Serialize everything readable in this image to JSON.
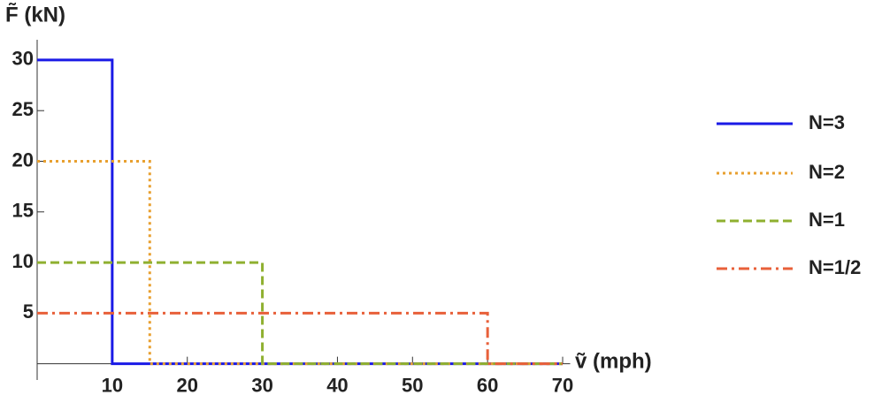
{
  "chart_data": {
    "type": "line",
    "y_label": "F̃ (kN)",
    "x_label": "ṽ (mph)",
    "xlim": [
      0,
      71
    ],
    "ylim": [
      -1.6,
      32
    ],
    "xticks": [
      10,
      20,
      30,
      40,
      50,
      60,
      70
    ],
    "yticks": [
      5,
      10,
      15,
      20,
      25,
      30
    ],
    "series": [
      {
        "name": "N=3",
        "color": "#1a1ae6",
        "dash": "solid",
        "x": [
          0,
          10,
          10,
          70
        ],
        "values": [
          30,
          30,
          0,
          0
        ]
      },
      {
        "name": "N=2",
        "color": "#e8a030",
        "dash": "dotted",
        "x": [
          0,
          15,
          15,
          70
        ],
        "values": [
          20,
          20,
          0,
          0
        ]
      },
      {
        "name": "N=1",
        "color": "#8fb030",
        "dash": "dashed",
        "x": [
          0,
          30,
          30,
          70
        ],
        "values": [
          10,
          10,
          0,
          0
        ]
      },
      {
        "name": "N=1/2",
        "color": "#e8603a",
        "dash": "dashdot",
        "x": [
          0,
          60,
          60,
          70
        ],
        "values": [
          5,
          5,
          0,
          0
        ]
      }
    ]
  }
}
